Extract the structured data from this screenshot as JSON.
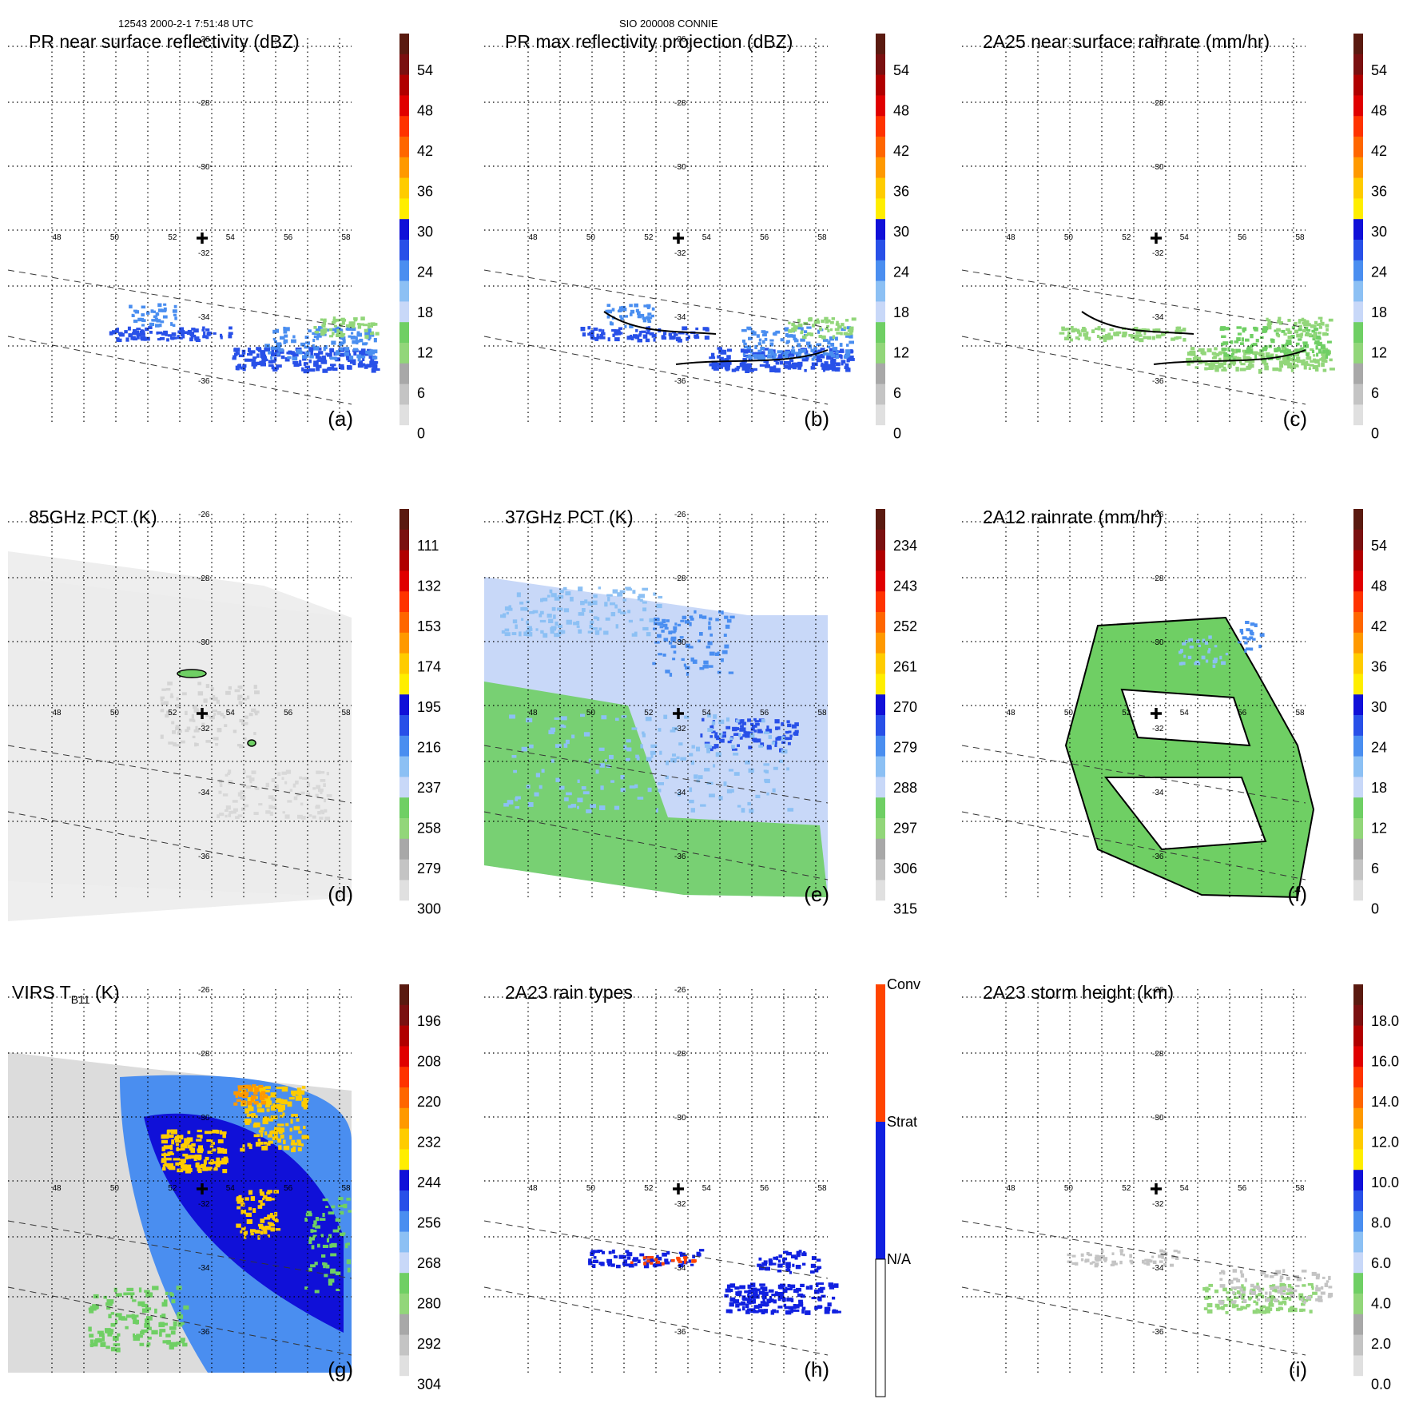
{
  "header": {
    "left": "12543 2000-2-1 7:51:48 UTC",
    "center": "SIO 200008 CONNIE"
  },
  "map": {
    "lon_labels": [
      "48",
      "50",
      "52",
      "54",
      "56",
      "58"
    ],
    "lat_labels": [
      "-26",
      "-28",
      "-30",
      "-32",
      "-34",
      "-36"
    ],
    "storm_center_marker": "plus-icon"
  },
  "panels": [
    {
      "title": "PR near surface reflectivity (dBZ)",
      "label": "(a)",
      "field": "reflectivity",
      "colorbar": [
        "54",
        "48",
        "42",
        "36",
        "30",
        "24",
        "18",
        "12",
        "6",
        "0"
      ]
    },
    {
      "title": "PR max reflectivity projection (dBZ)",
      "label": "(b)",
      "field": "reflectivity_max",
      "colorbar": [
        "54",
        "48",
        "42",
        "36",
        "30",
        "24",
        "18",
        "12",
        "6",
        "0"
      ]
    },
    {
      "title": "2A25 near surface rainrate (mm/hr)",
      "label": "(c)",
      "field": "rainrate",
      "colorbar": [
        "54",
        "48",
        "42",
        "36",
        "30",
        "24",
        "18",
        "12",
        "6",
        "0"
      ]
    },
    {
      "title": "85GHz PCT (K)",
      "label": "(d)",
      "field": "pct85",
      "colorbar": [
        "111",
        "132",
        "153",
        "174",
        "195",
        "216",
        "237",
        "258",
        "279",
        "300"
      ]
    },
    {
      "title": "37GHz PCT (K)",
      "label": "(e)",
      "field": "pct37",
      "colorbar": [
        "234",
        "243",
        "252",
        "261",
        "270",
        "279",
        "288",
        "297",
        "306",
        "315"
      ]
    },
    {
      "title": "2A12 rainrate (mm/hr)",
      "label": "(f)",
      "field": "rainrate_2a12",
      "colorbar": [
        "54",
        "48",
        "42",
        "36",
        "30",
        "24",
        "18",
        "12",
        "6",
        "0"
      ]
    },
    {
      "title_main": "VIRS T",
      "title_sub": "B11",
      "title_unit": "(K)",
      "label": "(g)",
      "field": "virs",
      "colorbar": [
        "196",
        "208",
        "220",
        "232",
        "244",
        "256",
        "268",
        "280",
        "292",
        "304"
      ]
    },
    {
      "title": "2A23 rain types",
      "label": "(h)",
      "field": "raintype",
      "colorbar": [
        "Conv",
        "Strat",
        "N/A"
      ]
    },
    {
      "title": "2A23 storm height (km)",
      "label": "(i)",
      "field": "stormheight",
      "colorbar": [
        "18.0",
        "16.0",
        "14.0",
        "12.0",
        "10.0",
        "8.0",
        "6.0",
        "4.0",
        "2.0",
        "0.0"
      ]
    }
  ],
  "colors": {
    "scale_low_to_high": [
      "#ffffff",
      "#e0e0e0",
      "#c4c4c4",
      "#a8a8a8",
      "#92d67a",
      "#6fcf64",
      "#c8d8f8",
      "#8cc0f4",
      "#4a8ef0",
      "#2850e8",
      "#1010d8",
      "#ffee00",
      "#ffcc00",
      "#ff9900",
      "#ff6600",
      "#ff3300",
      "#e00000",
      "#b00000",
      "#7a1010",
      "#5a1a10"
    ],
    "raintype": {
      "Conv": "#ff4400",
      "Strat": "#1020e0",
      "N/A": "#ffffff"
    },
    "contour": "#000000"
  },
  "chart_data": [
    {
      "type": "heatmap",
      "title": "PR near surface reflectivity (dBZ)",
      "x": [
        48,
        50,
        52,
        54,
        56,
        58
      ],
      "y": [
        -26,
        -28,
        -30,
        -32,
        -34,
        -36
      ],
      "colorbar_ticks": [
        0,
        6,
        12,
        18,
        24,
        30,
        36,
        42,
        48,
        54
      ]
    },
    {
      "type": "heatmap",
      "title": "PR max reflectivity projection (dBZ)",
      "x": [
        48,
        50,
        52,
        54,
        56,
        58
      ],
      "y": [
        -26,
        -28,
        -30,
        -32,
        -34,
        -36
      ],
      "colorbar_ticks": [
        0,
        6,
        12,
        18,
        24,
        30,
        36,
        42,
        48,
        54
      ]
    },
    {
      "type": "heatmap",
      "title": "2A25 near surface rainrate (mm/hr)",
      "x": [
        48,
        50,
        52,
        54,
        56,
        58
      ],
      "y": [
        -26,
        -28,
        -30,
        -32,
        -34,
        -36
      ],
      "colorbar_ticks": [
        0,
        6,
        12,
        18,
        24,
        30,
        36,
        42,
        48,
        54
      ]
    },
    {
      "type": "heatmap",
      "title": "85GHz PCT (K)",
      "x": [
        48,
        50,
        52,
        54,
        56,
        58
      ],
      "y": [
        -26,
        -28,
        -30,
        -32,
        -34,
        -36
      ],
      "colorbar_ticks": [
        300,
        279,
        258,
        237,
        216,
        195,
        174,
        153,
        132,
        111
      ]
    },
    {
      "type": "heatmap",
      "title": "37GHz PCT (K)",
      "x": [
        48,
        50,
        52,
        54,
        56,
        58
      ],
      "y": [
        -26,
        -28,
        -30,
        -32,
        -34,
        -36
      ],
      "colorbar_ticks": [
        315,
        306,
        297,
        288,
        279,
        270,
        261,
        252,
        243,
        234
      ]
    },
    {
      "type": "heatmap",
      "title": "2A12 rainrate (mm/hr)",
      "x": [
        48,
        50,
        52,
        54,
        56,
        58
      ],
      "y": [
        -26,
        -28,
        -30,
        -32,
        -34,
        -36
      ],
      "colorbar_ticks": [
        0,
        6,
        12,
        18,
        24,
        30,
        36,
        42,
        48,
        54
      ]
    },
    {
      "type": "heatmap",
      "title": "VIRS TB11 (K)",
      "x": [
        48,
        50,
        52,
        54,
        56,
        58
      ],
      "y": [
        -26,
        -28,
        -30,
        -32,
        -34,
        -36
      ],
      "colorbar_ticks": [
        304,
        292,
        280,
        268,
        256,
        244,
        232,
        220,
        208,
        196
      ]
    },
    {
      "type": "heatmap",
      "title": "2A23 rain types",
      "x": [
        48,
        50,
        52,
        54,
        56,
        58
      ],
      "y": [
        -26,
        -28,
        -30,
        -32,
        -34,
        -36
      ],
      "categories": [
        "N/A",
        "Strat",
        "Conv"
      ]
    },
    {
      "type": "heatmap",
      "title": "2A23 storm height (km)",
      "x": [
        48,
        50,
        52,
        54,
        56,
        58
      ],
      "y": [
        -26,
        -28,
        -30,
        -32,
        -34,
        -36
      ],
      "colorbar_ticks": [
        0.0,
        2.0,
        4.0,
        6.0,
        8.0,
        10.0,
        12.0,
        14.0,
        16.0,
        18.0
      ]
    }
  ]
}
